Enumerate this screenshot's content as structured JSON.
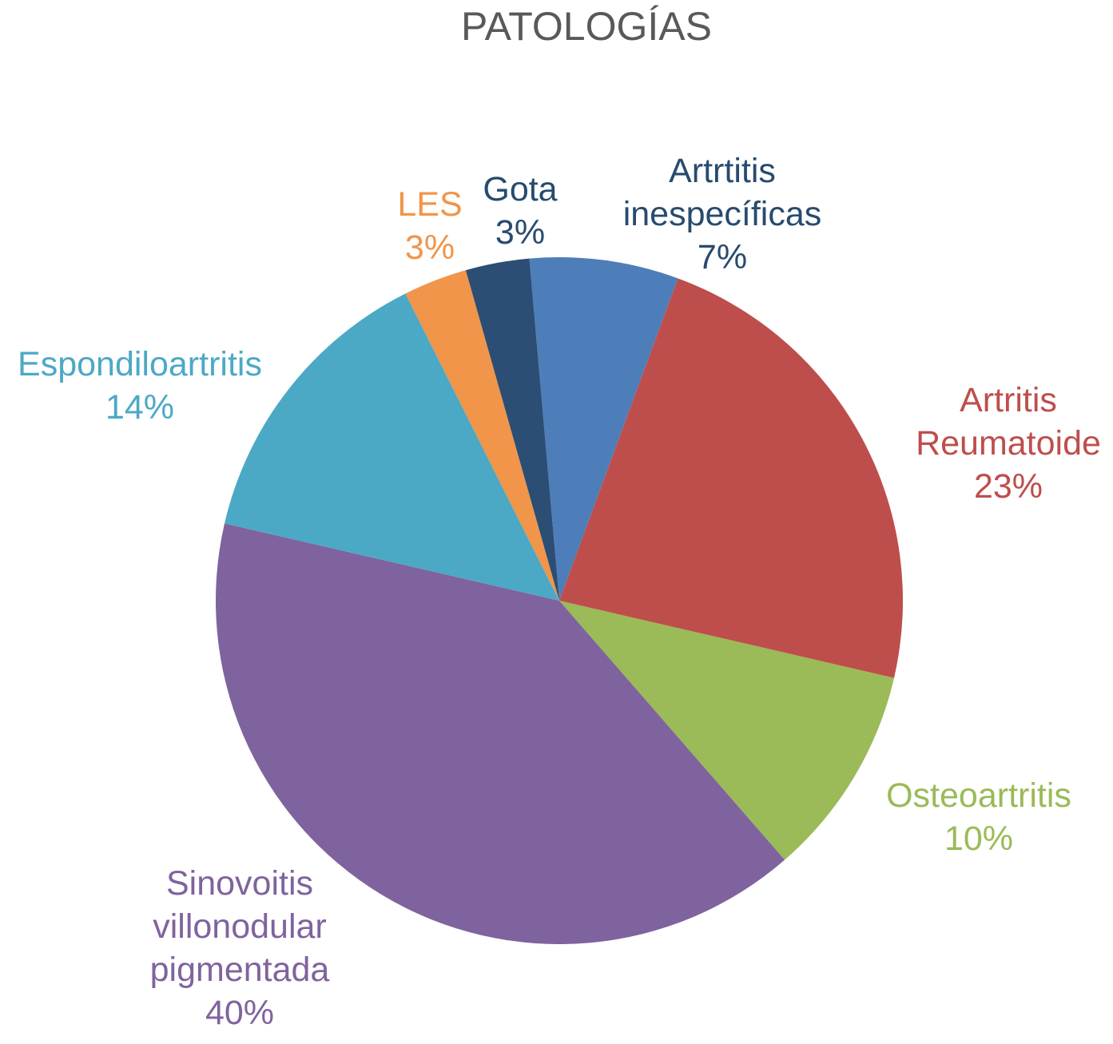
{
  "chart_data": {
    "type": "pie",
    "title": "PATOLOGÍAS",
    "legend": "none",
    "slices": [
      {
        "label_lines": [
          "Artrtitis",
          "inespecíficas"
        ],
        "value": 7,
        "percent_text": "7%",
        "color": "#4E7EB9",
        "label_color": "#274B6E"
      },
      {
        "label_lines": [
          "Artritis",
          "Reumatoide"
        ],
        "value": 23,
        "percent_text": "23%",
        "color": "#BE4E4C",
        "label_color": "#BE4E4C"
      },
      {
        "label_lines": [
          "Osteoartritis"
        ],
        "value": 10,
        "percent_text": "10%",
        "color": "#9BBA58",
        "label_color": "#9BBA58"
      },
      {
        "label_lines": [
          "Sinovoitis",
          "villonodular",
          "pigmentada"
        ],
        "value": 40,
        "percent_text": "40%",
        "color": "#7F639E",
        "label_color": "#7F639E"
      },
      {
        "label_lines": [
          "Espondiloartritis"
        ],
        "value": 14,
        "percent_text": "14%",
        "color": "#4BA9C5",
        "label_color": "#4BA9C5"
      },
      {
        "label_lines": [
          "LES"
        ],
        "value": 3,
        "percent_text": "3%",
        "color": "#F0954A",
        "label_color": "#F0954A"
      },
      {
        "label_lines": [
          "Gota"
        ],
        "value": 3,
        "percent_text": "3%",
        "color": "#2C4D74",
        "label_color": "#274B6E"
      }
    ]
  }
}
